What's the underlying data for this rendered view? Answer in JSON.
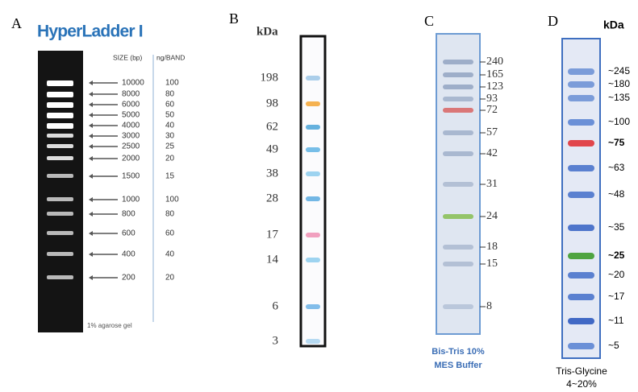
{
  "panels": [
    {
      "letter": "A",
      "title": "HyperLadder I",
      "headers": [
        "SIZE (bp)",
        "ng/BAND"
      ],
      "bands": [
        {
          "size": "10000",
          "ng": "100"
        },
        {
          "size": "8000",
          "ng": "80"
        },
        {
          "size": "6000",
          "ng": "60"
        },
        {
          "size": "5000",
          "ng": "50"
        },
        {
          "size": "4000",
          "ng": "40"
        },
        {
          "size": "3000",
          "ng": "30"
        },
        {
          "size": "2500",
          "ng": "25"
        },
        {
          "size": "2000",
          "ng": "20"
        },
        {
          "size": "1500",
          "ng": "15"
        },
        {
          "size": "1000",
          "ng": "100"
        },
        {
          "size": "800",
          "ng": "80"
        },
        {
          "size": "600",
          "ng": "60"
        },
        {
          "size": "400",
          "ng": "40"
        },
        {
          "size": "200",
          "ng": "20"
        }
      ],
      "footnote": "1% agarose gel"
    },
    {
      "letter": "B",
      "unit": "kDa",
      "bands": [
        "198",
        "98",
        "62",
        "49",
        "38",
        "28",
        "17",
        "14",
        "6",
        "3"
      ]
    },
    {
      "letter": "C",
      "bands": [
        "240",
        "165",
        "123",
        "93",
        "72",
        "57",
        "42",
        "31",
        "24",
        "18",
        "15",
        "8"
      ],
      "caption": [
        "Bis-Tris 10%",
        "MES Buffer"
      ]
    },
    {
      "letter": "D",
      "unit": "kDa",
      "bands": [
        "~245",
        "~180",
        "~135",
        "~100",
        "~75",
        "~63",
        "~48",
        "~35",
        "~25",
        "~20",
        "~17",
        "~11",
        "~5"
      ],
      "caption": [
        "Tris-Glycine",
        "4~20%"
      ]
    }
  ]
}
